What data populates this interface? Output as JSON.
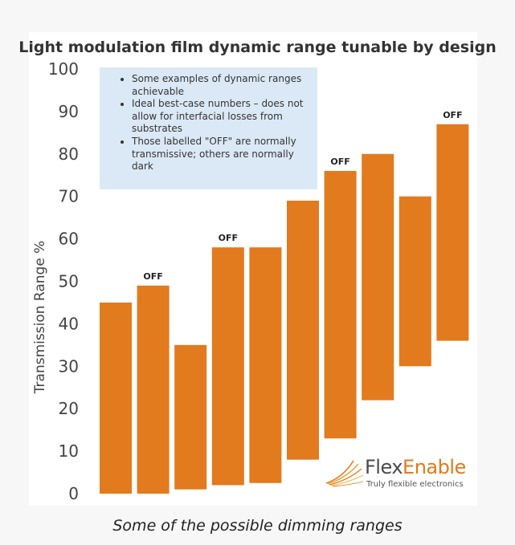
{
  "caption": "Some of the possible dimming ranges",
  "logo": {
    "brand_part1": "Flex",
    "brand_part2": "Enable",
    "tagline": "Truly flexible electronics"
  },
  "notes": [
    "Some examples of  dynamic ranges achievable",
    "Ideal best-case numbers – does not allow for interfacial losses from substrates",
    "Those labelled \"OFF\" are normally transmissive; others are normally dark"
  ],
  "colors": {
    "bar": "#e27a1e",
    "note_bg": "#dbe9f6",
    "accent": "#e27a1e"
  },
  "chart_data": {
    "type": "bar",
    "subtype": "floating-range",
    "title": "Light modulation film dynamic range tunable by design",
    "ylabel": "Transmission Range %",
    "xlabel": "",
    "ylim": [
      0,
      100
    ],
    "yticks": [
      0,
      10,
      20,
      30,
      40,
      50,
      60,
      70,
      80,
      90,
      100
    ],
    "grid": false,
    "legend": "none",
    "bars": [
      {
        "low": 0,
        "high": 45,
        "label": ""
      },
      {
        "low": 0,
        "high": 49,
        "label": "OFF"
      },
      {
        "low": 1,
        "high": 35,
        "label": ""
      },
      {
        "low": 2,
        "high": 58,
        "label": "OFF"
      },
      {
        "low": 2.5,
        "high": 58,
        "label": ""
      },
      {
        "low": 8,
        "high": 69,
        "label": ""
      },
      {
        "low": 13,
        "high": 76,
        "label": "OFF"
      },
      {
        "low": 22,
        "high": 80,
        "label": ""
      },
      {
        "low": 30,
        "high": 70,
        "label": ""
      },
      {
        "low": 36,
        "high": 87,
        "label": "OFF"
      }
    ]
  }
}
